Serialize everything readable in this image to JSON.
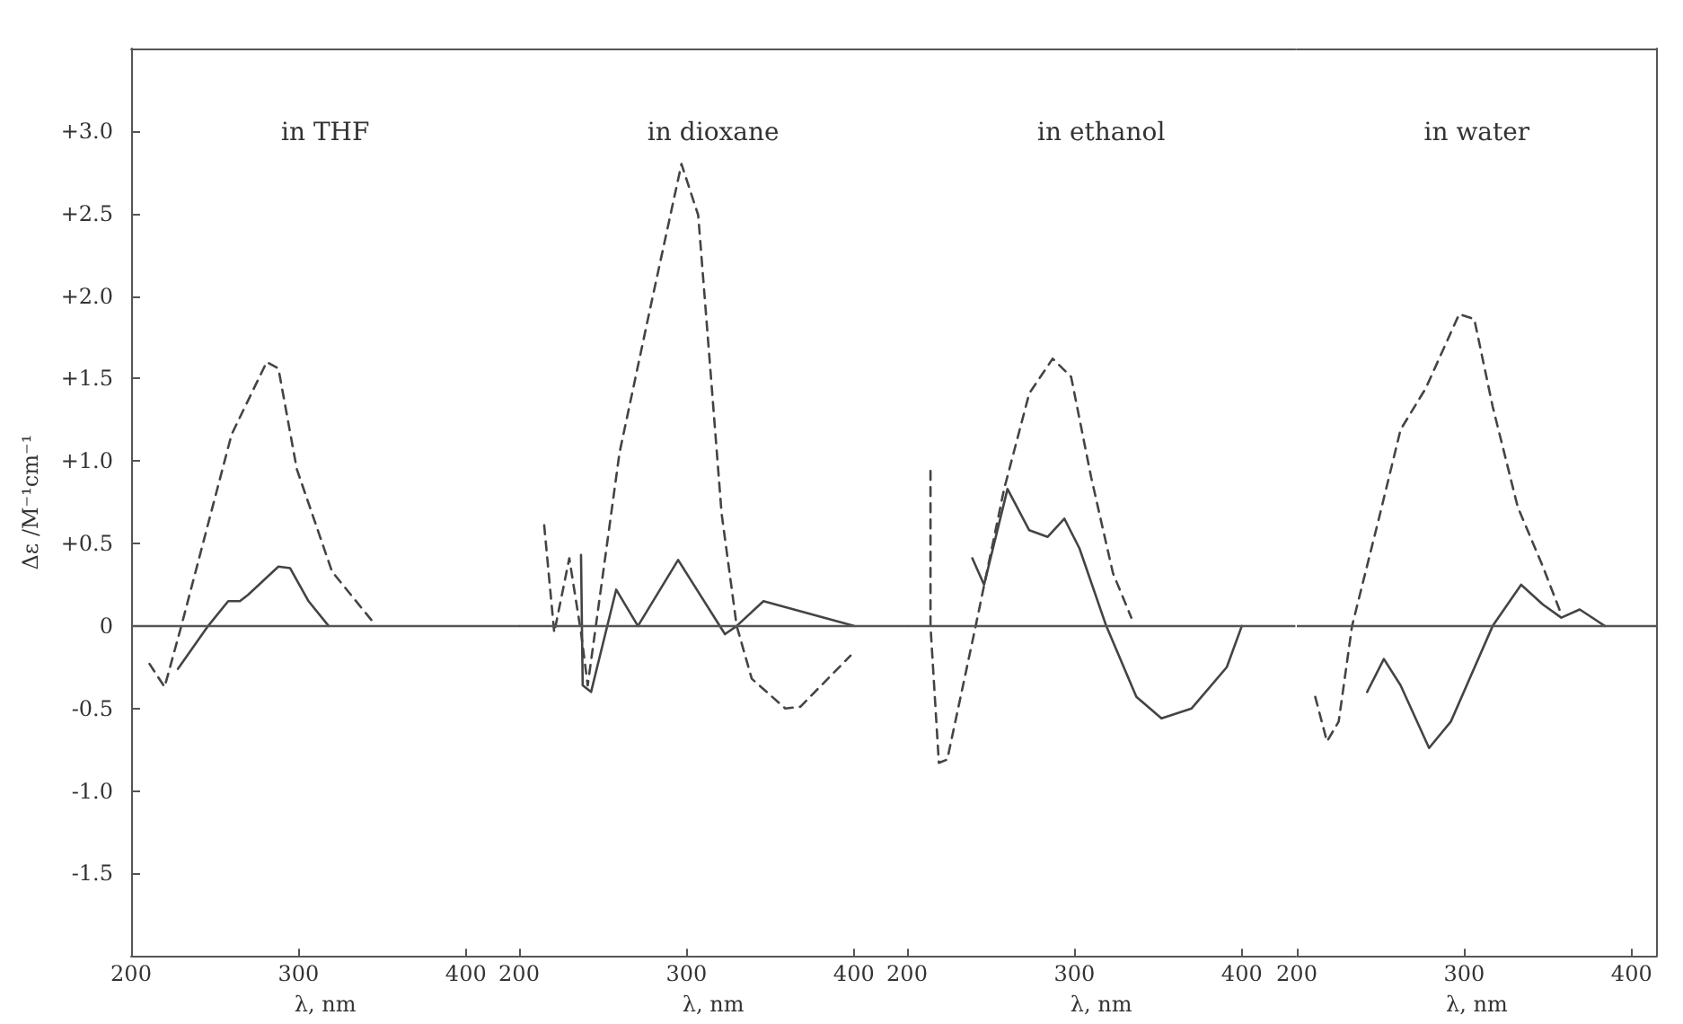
{
  "chart_data": [
    {
      "type": "line",
      "title": "in THF",
      "xlabel": "λ, nm",
      "ylabel": "Δε /M⁻¹cm⁻¹",
      "xlim": [
        200,
        432
      ],
      "xticks": [
        200,
        300,
        400
      ],
      "ylim": [
        -2,
        3.5
      ],
      "yticks": [
        {
          "value": -1.5,
          "label": "-1.5"
        },
        {
          "value": -1,
          "label": "-1.0"
        },
        -0.5,
        0,
        {
          "value": 0.5,
          "label": "+0.5"
        },
        {
          "value": 1,
          "label": "+1.0"
        },
        {
          "value": 1.5,
          "label": "+1.5"
        },
        {
          "value": 2,
          "label": "+2.0"
        },
        {
          "value": 2.5,
          "label": "+2.5"
        },
        {
          "value": 3,
          "label": "+3.0"
        }
      ],
      "marker": "none",
      "ref_lines": [
        {
          "axis": "y",
          "value": 0,
          "color": "#555555"
        }
      ],
      "series": [
        {
          "color": "#444444",
          "line_style": "dashed",
          "x": [
            211,
            220,
            230,
            260,
            281,
            288,
            299,
            320,
            344
          ],
          "values": [
            -0.23,
            -0.37,
            0,
            1.16,
            1.6,
            1.56,
            0.95,
            0.33,
            0.03
          ]
        },
        {
          "color": "#444444",
          "line_style": "solid",
          "x": [
            228,
            246,
            258,
            265,
            270,
            288,
            295,
            306,
            318
          ],
          "values": [
            -0.26,
            0,
            0.15,
            0.15,
            0.19,
            0.36,
            0.35,
            0.15,
            0
          ]
        }
      ]
    },
    {
      "type": "line",
      "title": "in dioxane",
      "xlabel": "λ, nm",
      "xlim": [
        200,
        432
      ],
      "xticks": [
        200,
        300,
        400
      ],
      "ylim": [
        -2,
        3.5
      ],
      "tick_labels": "x",
      "marker": "none",
      "ref_lines": [
        {
          "axis": "y",
          "value": 0,
          "color": "#555555"
        }
      ],
      "series": [
        {
          "color": "#444444",
          "line_style": "dashed",
          "x": [
            215,
            221,
            230,
            237,
            241,
            260,
            278,
            297,
            307,
            314,
            321,
            330,
            339,
            359,
            368,
            398
          ],
          "values": [
            0.61,
            -0.04,
            0.41,
            -0.04,
            -0.36,
            1.05,
            1.91,
            2.8,
            2.49,
            1.59,
            0.68,
            0,
            -0.32,
            -0.5,
            -0.49,
            -0.18
          ]
        },
        {
          "color": "#444444",
          "line_style": "solid",
          "x": [
            237,
            238,
            243,
            258,
            271,
            295,
            323,
            330,
            346,
            400
          ],
          "values": [
            0.43,
            -0.36,
            -0.4,
            0.22,
            0,
            0.4,
            -0.05,
            0,
            0.15,
            0
          ]
        }
      ]
    },
    {
      "type": "line",
      "title": "in ethanol",
      "xlabel": "λ, nm",
      "xlim": [
        200,
        432
      ],
      "xticks": [
        200,
        300,
        400
      ],
      "ylim": [
        -2,
        3.5
      ],
      "tick_labels": "x",
      "marker": "none",
      "ref_lines": [
        {
          "axis": "y",
          "value": 0,
          "color": "#555555"
        }
      ],
      "series": [
        {
          "color": "#444444",
          "line_style": "dashed",
          "x": [
            214,
            214,
            219,
            224,
            241,
            258,
            273,
            287,
            298,
            310,
            323,
            334
          ],
          "values": [
            0.94,
            0,
            -0.83,
            -0.81,
            0,
            0.83,
            1.41,
            1.62,
            1.51,
            0.9,
            0.32,
            0.05
          ]
        },
        {
          "color": "#444444",
          "line_style": "solid",
          "x": [
            239,
            246,
            260,
            273,
            284,
            294,
            303,
            319,
            337,
            352,
            370,
            391,
            400
          ],
          "values": [
            0.41,
            0.25,
            0.83,
            0.58,
            0.54,
            0.65,
            0.47,
            0,
            -0.43,
            -0.56,
            -0.5,
            -0.25,
            0
          ]
        }
      ]
    },
    {
      "type": "line",
      "title": "in water",
      "xlabel": "λ, nm",
      "xlim": [
        200,
        415
      ],
      "xticks": [
        200,
        300,
        400
      ],
      "ylim": [
        -2,
        3.5
      ],
      "tick_labels": "x",
      "marker": "none",
      "ref_lines": [
        {
          "axis": "y",
          "value": 0,
          "color": "#555555"
        }
      ],
      "series": [
        {
          "color": "#444444",
          "line_style": "dashed",
          "x": [
            211,
            218,
            225,
            233,
            249,
            262,
            277,
            297,
            306,
            317,
            332,
            347,
            358
          ],
          "values": [
            -0.43,
            -0.7,
            -0.58,
            0,
            0.65,
            1.19,
            1.44,
            1.89,
            1.86,
            1.33,
            0.72,
            0.36,
            0.07
          ]
        },
        {
          "color": "#444444",
          "line_style": "solid",
          "x": [
            242,
            252,
            262,
            279,
            292,
            317,
            334,
            347,
            358,
            369,
            384
          ],
          "values": [
            -0.4,
            -0.2,
            -0.36,
            -0.74,
            -0.58,
            0,
            0.25,
            0.13,
            0.05,
            0.1,
            0
          ]
        }
      ]
    }
  ]
}
